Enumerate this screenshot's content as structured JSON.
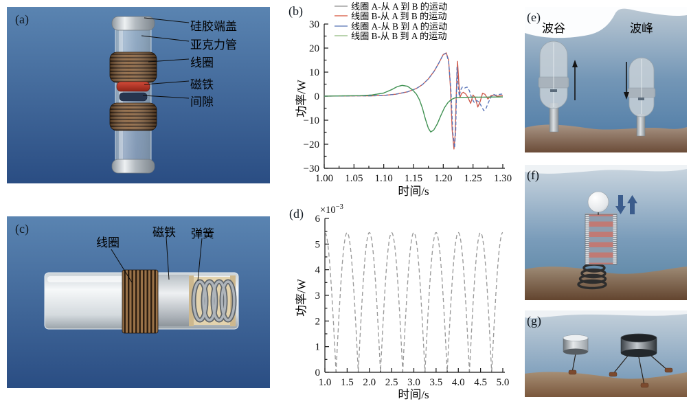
{
  "panels": {
    "a": {
      "tag": "(a)",
      "part_labels": [
        "硅胶端盖",
        "亚克力管",
        "线圈",
        "磁铁",
        "间隙"
      ]
    },
    "b": {
      "tag": "(b)"
    },
    "c": {
      "tag": "(c)",
      "part_labels": [
        "线圈",
        "磁铁",
        "弹簧"
      ]
    },
    "d": {
      "tag": "(d)"
    },
    "e": {
      "tag": "(e)",
      "wave_labels": [
        "波谷",
        "波峰"
      ]
    },
    "f": {
      "tag": "(f)"
    },
    "g": {
      "tag": "(g)"
    }
  },
  "colors": {
    "panel_bg_top": "#557fad",
    "panel_bg_bottom": "#2a4d83",
    "magnet_red": "#b5372a",
    "coil_copper": "#8a6038",
    "arrow_blue": "#3b5c8c",
    "seabed_brown": "#6e4e36",
    "water_deep": "#4a78a4"
  },
  "chart_data": [
    {
      "id": "chart-b",
      "panel": "(b)",
      "type": "line",
      "xlabel": "时间/s",
      "ylabel": "功率/W",
      "xlim": [
        1.0,
        1.3
      ],
      "ylim": [
        -30,
        30
      ],
      "grid": false,
      "legend_position": "top-center",
      "x_ticks": [
        [
          1.0,
          "1.00"
        ],
        [
          1.05,
          "1.05"
        ],
        [
          1.1,
          "1.10"
        ],
        [
          1.15,
          "1.15"
        ],
        [
          1.2,
          "1.20"
        ],
        [
          1.25,
          "1.25"
        ],
        [
          1.3,
          "1.30"
        ]
      ],
      "y_ticks": [
        [
          -30,
          "−30"
        ],
        [
          -20,
          "−20"
        ],
        [
          -10,
          "−10"
        ],
        [
          0,
          "0"
        ],
        [
          10,
          "10"
        ],
        [
          20,
          "20"
        ],
        [
          30,
          "30"
        ]
      ],
      "series": [
        {
          "name": "线圈 A-从 A 到 B 的运动",
          "color": "#a9a9a9",
          "legend_color": "#b9b9b9",
          "dash": "4 2.5",
          "points": [
            [
              1.0,
              0.0
            ],
            [
              1.03,
              0.1
            ],
            [
              1.06,
              0.2
            ],
            [
              1.08,
              0.5
            ],
            [
              1.1,
              1.3
            ],
            [
              1.113,
              2.7
            ],
            [
              1.123,
              4.0
            ],
            [
              1.131,
              4.5
            ],
            [
              1.14,
              4.1
            ],
            [
              1.148,
              2.7
            ],
            [
              1.155,
              0.8
            ],
            [
              1.16,
              -1.5
            ],
            [
              1.165,
              -5.0
            ],
            [
              1.17,
              -9.5
            ],
            [
              1.175,
              -13.4
            ],
            [
              1.179,
              -14.9
            ],
            [
              1.184,
              -14.1
            ],
            [
              1.19,
              -11.5
            ],
            [
              1.196,
              -8.0
            ],
            [
              1.202,
              -4.8
            ],
            [
              1.208,
              -2.6
            ],
            [
              1.214,
              -1.3
            ],
            [
              1.22,
              -0.7
            ],
            [
              1.232,
              -0.5
            ],
            [
              1.25,
              -0.4
            ],
            [
              1.27,
              -0.4
            ],
            [
              1.3,
              -0.3
            ]
          ]
        },
        {
          "name": "线圈 B-从 A 到 B 的运动",
          "color": "#cf5b4c",
          "legend_color": "#e59383",
          "dash": "",
          "points": [
            [
              1.0,
              0.0
            ],
            [
              1.05,
              0.1
            ],
            [
              1.08,
              0.1
            ],
            [
              1.1,
              0.3
            ],
            [
              1.12,
              0.8
            ],
            [
              1.14,
              1.8
            ],
            [
              1.155,
              3.2
            ],
            [
              1.165,
              4.8
            ],
            [
              1.175,
              7.2
            ],
            [
              1.185,
              10.5
            ],
            [
              1.193,
              14.0
            ],
            [
              1.2,
              17.3
            ],
            [
              1.205,
              18.0
            ],
            [
              1.209,
              15.0
            ],
            [
              1.212,
              4.0
            ],
            [
              1.215,
              -14.0
            ],
            [
              1.218,
              -22.0
            ],
            [
              1.22,
              -16.0
            ],
            [
              1.222,
              2.0
            ],
            [
              1.224,
              14.5
            ],
            [
              1.226,
              6.0
            ],
            [
              1.228,
              -0.5
            ],
            [
              1.231,
              1.2
            ],
            [
              1.234,
              1.6
            ],
            [
              1.238,
              0.8
            ],
            [
              1.242,
              -0.8
            ],
            [
              1.246,
              -3.0
            ],
            [
              1.25,
              0.5
            ],
            [
              1.254,
              -0.8
            ],
            [
              1.258,
              -4.5
            ],
            [
              1.262,
              -2.2
            ],
            [
              1.266,
              1.2
            ],
            [
              1.27,
              0.8
            ],
            [
              1.275,
              -1.2
            ],
            [
              1.28,
              0.2
            ],
            [
              1.285,
              0.5
            ],
            [
              1.29,
              0.0
            ],
            [
              1.3,
              0.2
            ]
          ]
        },
        {
          "name": "线圈 A-从 B 到 A 的运动",
          "color": "#5873b8",
          "legend_color": "#93a6cf",
          "dash": "5 3",
          "points": [
            [
              1.0,
              0.0
            ],
            [
              1.05,
              0.1
            ],
            [
              1.08,
              0.1
            ],
            [
              1.1,
              0.3
            ],
            [
              1.12,
              0.8
            ],
            [
              1.14,
              1.8
            ],
            [
              1.155,
              3.2
            ],
            [
              1.165,
              4.8
            ],
            [
              1.175,
              7.2
            ],
            [
              1.185,
              10.5
            ],
            [
              1.193,
              14.0
            ],
            [
              1.2,
              17.3
            ],
            [
              1.205,
              17.8
            ],
            [
              1.209,
              14.5
            ],
            [
              1.213,
              2.0
            ],
            [
              1.216,
              -15.0
            ],
            [
              1.219,
              -21.5
            ],
            [
              1.221,
              -14.0
            ],
            [
              1.223,
              12.0
            ],
            [
              1.225,
              4.0
            ],
            [
              1.227,
              0.0
            ],
            [
              1.229,
              2.5
            ],
            [
              1.232,
              3.8
            ],
            [
              1.236,
              3.4
            ],
            [
              1.24,
              3.8
            ],
            [
              1.244,
              2.2
            ],
            [
              1.248,
              -1.0
            ],
            [
              1.252,
              -2.6
            ],
            [
              1.256,
              -1.8
            ],
            [
              1.26,
              -2.4
            ],
            [
              1.264,
              -4.2
            ],
            [
              1.268,
              -6.0
            ],
            [
              1.272,
              -5.0
            ],
            [
              1.276,
              -2.5
            ],
            [
              1.28,
              -0.5
            ],
            [
              1.284,
              0.8
            ],
            [
              1.288,
              0.4
            ],
            [
              1.292,
              0.6
            ],
            [
              1.296,
              0.8
            ],
            [
              1.3,
              0.9
            ]
          ]
        },
        {
          "name": "线圈 B-从 B 到 A 的运动",
          "color": "#3f9352",
          "legend_color": "#b9d3ae",
          "dash": "",
          "points": [
            [
              1.0,
              0.0
            ],
            [
              1.03,
              0.1
            ],
            [
              1.06,
              0.2
            ],
            [
              1.08,
              0.5
            ],
            [
              1.1,
              1.3
            ],
            [
              1.113,
              2.7
            ],
            [
              1.123,
              4.0
            ],
            [
              1.131,
              4.5
            ],
            [
              1.14,
              4.1
            ],
            [
              1.148,
              2.7
            ],
            [
              1.155,
              0.8
            ],
            [
              1.16,
              -1.5
            ],
            [
              1.165,
              -5.0
            ],
            [
              1.17,
              -9.5
            ],
            [
              1.175,
              -13.4
            ],
            [
              1.179,
              -14.9
            ],
            [
              1.184,
              -14.1
            ],
            [
              1.19,
              -11.5
            ],
            [
              1.196,
              -8.0
            ],
            [
              1.202,
              -4.8
            ],
            [
              1.208,
              -2.6
            ],
            [
              1.214,
              -1.3
            ],
            [
              1.22,
              -0.7
            ],
            [
              1.232,
              -0.5
            ],
            [
              1.25,
              -0.4
            ],
            [
              1.27,
              -0.4
            ],
            [
              1.3,
              -0.3
            ]
          ]
        }
      ]
    },
    {
      "id": "chart-d",
      "panel": "(d)",
      "type": "line",
      "xlabel": "时间/s",
      "ylabel": "功率/W",
      "scale": {
        "text": "×10⁻³",
        "base": "×10",
        "exp": "−3"
      },
      "xlim": [
        1.0,
        5.0
      ],
      "ylim": [
        0,
        0.006
      ],
      "grid": false,
      "x_ticks": [
        [
          1.0,
          "1.0"
        ],
        [
          1.5,
          "1.5"
        ],
        [
          2.0,
          "2.0"
        ],
        [
          2.5,
          "2.5"
        ],
        [
          3.0,
          "3.0"
        ],
        [
          3.5,
          "3.5"
        ],
        [
          4.0,
          "4.0"
        ],
        [
          4.5,
          "4.5"
        ],
        [
          5.0,
          "5.0"
        ]
      ],
      "y_ticks": [
        [
          0,
          "0"
        ],
        [
          0.001,
          "1"
        ],
        [
          0.002,
          "2"
        ],
        [
          0.003,
          "3"
        ],
        [
          0.004,
          "4"
        ],
        [
          0.005,
          "5"
        ],
        [
          0.006,
          "6"
        ]
      ],
      "series": [
        {
          "color": "#9a9a9a",
          "legend_color": "#9a9a9a",
          "dash": "6 4",
          "waveform": {
            "shape": "rectified-cosine",
            "amplitude": 0.00545,
            "cycles_per_second": 1,
            "t_start": 1.0,
            "t_end": 5.0,
            "peak_value": 0.00545,
            "period_s": 0.5
          }
        }
      ]
    }
  ]
}
